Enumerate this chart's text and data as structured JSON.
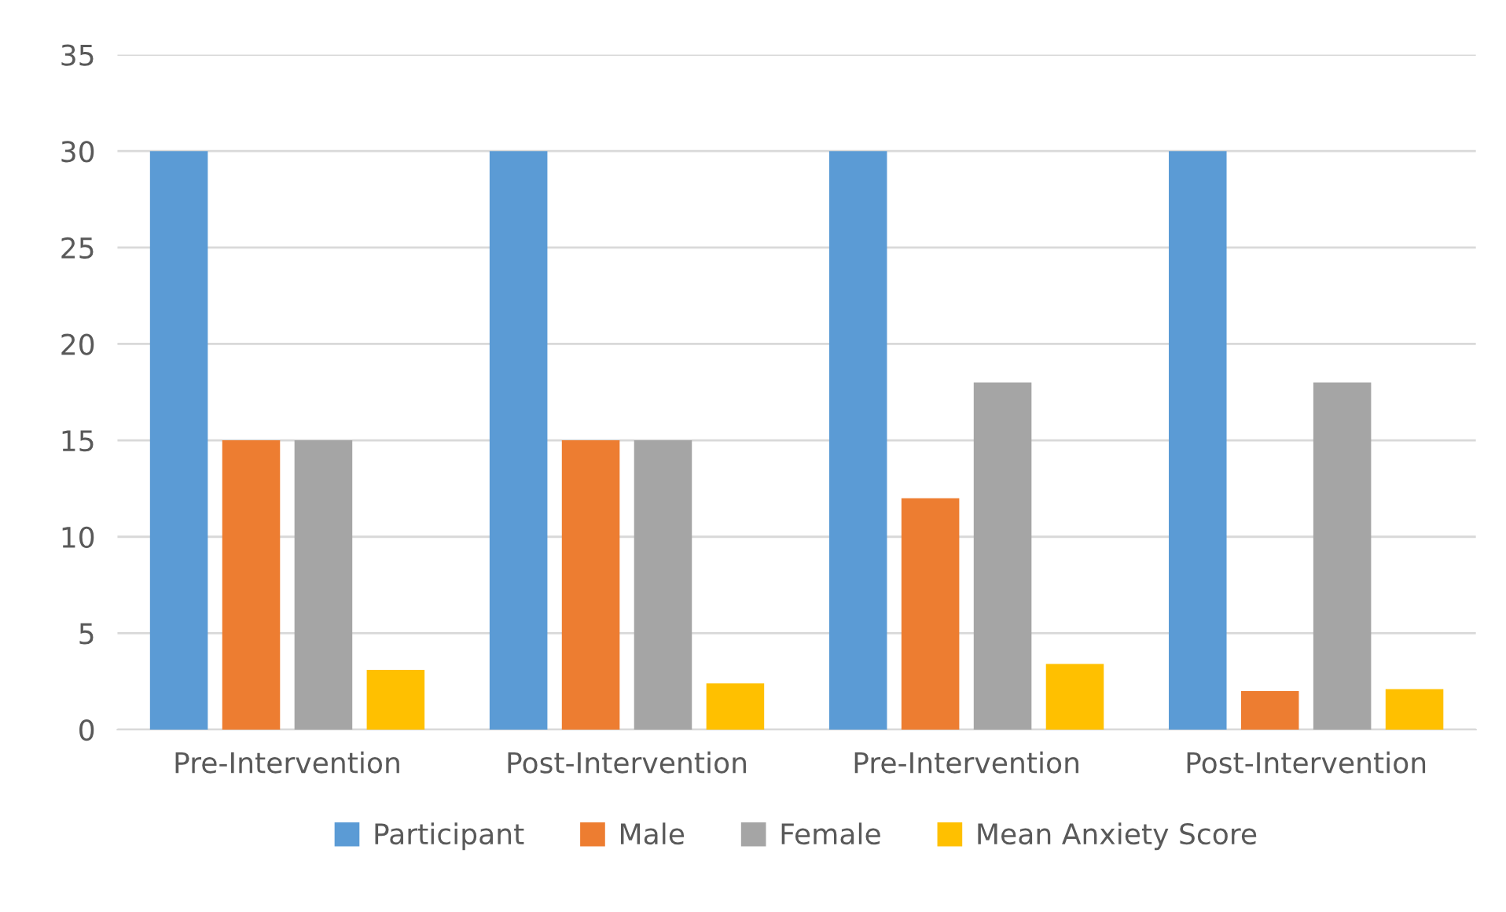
{
  "chart_data": {
    "type": "bar",
    "categories": [
      "Pre-Intervention",
      "Post-Intervention",
      "Pre-Intervention",
      "Post-Intervention"
    ],
    "series": [
      {
        "name": "Participant",
        "color": "#5b9bd5",
        "values": [
          30,
          30,
          30,
          30
        ]
      },
      {
        "name": "Male",
        "color": "#ed7d31",
        "values": [
          15,
          15,
          12,
          2
        ]
      },
      {
        "name": "Female",
        "color": "#a5a5a5",
        "values": [
          15,
          15,
          18,
          18
        ]
      },
      {
        "name": "Mean Anxiety Score",
        "color": "#ffc000",
        "values": [
          3.1,
          2.4,
          3.4,
          2.1
        ]
      }
    ],
    "ylim": [
      0,
      35
    ],
    "yticks": [
      0,
      5,
      10,
      15,
      20,
      25,
      30,
      35
    ],
    "grid": "y",
    "legend": "bottom"
  }
}
